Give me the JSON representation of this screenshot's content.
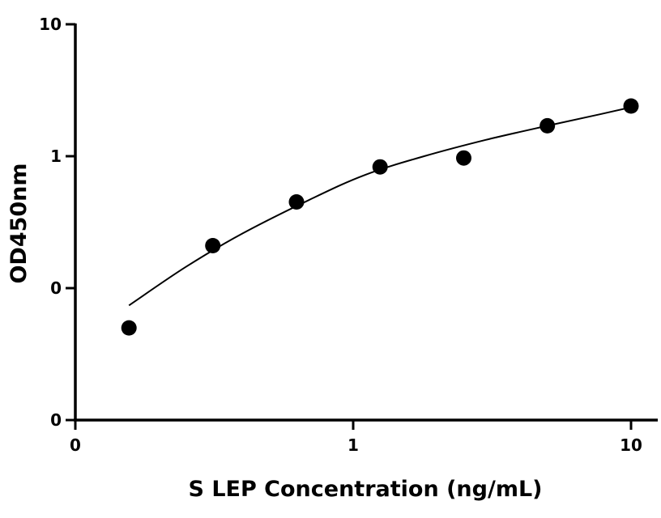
{
  "chart_data": {
    "type": "scatter",
    "title": "",
    "xlabel": "S LEP Concentration (ng/mL)",
    "ylabel": "OD450nm",
    "x_scale": "log",
    "y_scale": "log",
    "xlim": [
      0.1,
      12
    ],
    "ylim": [
      0.01,
      10
    ],
    "x_ticks": [
      0.1,
      1,
      10
    ],
    "x_tick_labels": [
      "0",
      "1",
      "10"
    ],
    "y_ticks": [
      0.01,
      0.1,
      1,
      10
    ],
    "y_tick_labels": [
      "0",
      "0",
      "1",
      "10"
    ],
    "grid": false,
    "legend": "none",
    "point_color": "#000000",
    "line_color": "#000000",
    "series": [
      {
        "x": [
          0.156,
          0.3125,
          0.625,
          1.25,
          2.5,
          5,
          10
        ],
        "y": [
          0.05,
          0.21,
          0.45,
          0.83,
          0.97,
          1.7,
          2.4
        ]
      }
    ],
    "fit": {
      "x": [
        0.156,
        0.25,
        0.4,
        0.7,
        1.1,
        1.8,
        3,
        5,
        7.5,
        10
      ],
      "y": [
        0.074,
        0.145,
        0.26,
        0.47,
        0.72,
        1.0,
        1.33,
        1.7,
        2.05,
        2.35
      ]
    }
  }
}
